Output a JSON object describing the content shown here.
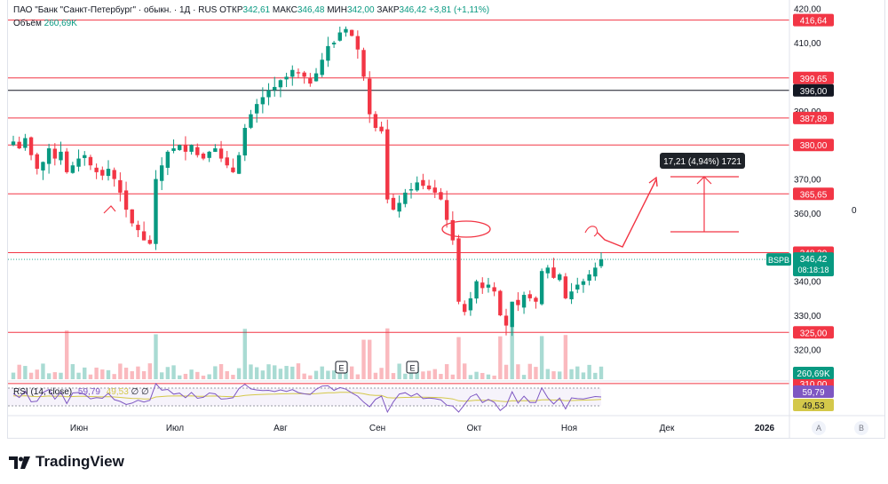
{
  "header": {
    "symbol_line": "ПАО \"Банк \"Санкт-Петербург\" · обыкн. · 1Д · RUS",
    "open_label": "ОТКР",
    "open_value": "342,61",
    "high_label": "МАКС",
    "high_value": "346,48",
    "low_label": "МИН",
    "low_value": "342,00",
    "close_label": "ЗАКР",
    "close_value": "346,42",
    "change": "+3,81 (+1,11%)",
    "volume_label": "Объём",
    "volume_value": "260,69K"
  },
  "rsi_legend": {
    "label": "RSI (14, close)",
    "value": "59,79",
    "value2": "49,53",
    "extra": "∅ ∅"
  },
  "price_scale": {
    "ticks": [
      "420,00",
      "410,00",
      "390,00",
      "370,00",
      "360,00",
      "340,00",
      "330,00",
      "320,00"
    ]
  },
  "levels": [
    {
      "label": "416,64",
      "value": 416.64,
      "color": "#f23645"
    },
    {
      "label": "399,65",
      "value": 399.65,
      "color": "#f23645"
    },
    {
      "label": "396,00",
      "value": 396.0,
      "color": "#131722"
    },
    {
      "label": "387,89",
      "value": 387.89,
      "color": "#f23645"
    },
    {
      "label": "380,00",
      "value": 380.0,
      "color": "#f23645"
    },
    {
      "label": "365,65",
      "value": 365.65,
      "color": "#f23645"
    },
    {
      "label": "348,39",
      "value": 348.39,
      "color": "#f23645"
    },
    {
      "label": "325,00",
      "value": 325.0,
      "color": "#f23645"
    },
    {
      "label": "310,00",
      "value": 310.0,
      "color": "#f23645"
    }
  ],
  "current": {
    "ticker": "BSPB",
    "price": "346,42",
    "price_value": 346.42,
    "countdown": "08:18:18",
    "volume": "260,69K"
  },
  "rsi_badges": [
    "59,79",
    "49,53"
  ],
  "measure": {
    "label": "17,21 (4,94%) 1721"
  },
  "side_zero": "0",
  "earnings_markers": [
    "E",
    "E"
  ],
  "time_axis": [
    "Июн",
    "Июл",
    "Авг",
    "Сен",
    "Окт",
    "Ноя",
    "Дек",
    "2026"
  ],
  "scale_buttons": [
    "A",
    "B"
  ],
  "brand": "TradingView",
  "colors": {
    "up": "#089981",
    "down": "#f23645",
    "rsi": "#7e57c2",
    "rsi_ma": "#d4c84a"
  },
  "chart_data": {
    "type": "candlestick",
    "symbol": "BSPB",
    "interval": "1D",
    "price_range": [
      311,
      422
    ],
    "last_close": 346.42,
    "closes": [
      381,
      379,
      382,
      377,
      373,
      375,
      379,
      376,
      378,
      372,
      374,
      376,
      377,
      374,
      372,
      371,
      373,
      370,
      366,
      361,
      357,
      355,
      352,
      351,
      370,
      374,
      378,
      379,
      380,
      378,
      380,
      377,
      376,
      378,
      379,
      376,
      374,
      372,
      377,
      385,
      389,
      392,
      394,
      396,
      397,
      399,
      400,
      402,
      401,
      400,
      398,
      401,
      405,
      409,
      410,
      413,
      414,
      412,
      408,
      400,
      389,
      385,
      384,
      364,
      361,
      363,
      366,
      367,
      369,
      368,
      367,
      366,
      364,
      358,
      352,
      334,
      331,
      335,
      340,
      338,
      339,
      337,
      330,
      327,
      334,
      333,
      336,
      335,
      334,
      343,
      344,
      341,
      342,
      335,
      337,
      339,
      340,
      342,
      344,
      346.42
    ],
    "volume_note": "histogram under price pane, last 260,69K",
    "rsi_period": 14,
    "rsi_last": 59.79,
    "rsi_ma_last": 49.53
  }
}
